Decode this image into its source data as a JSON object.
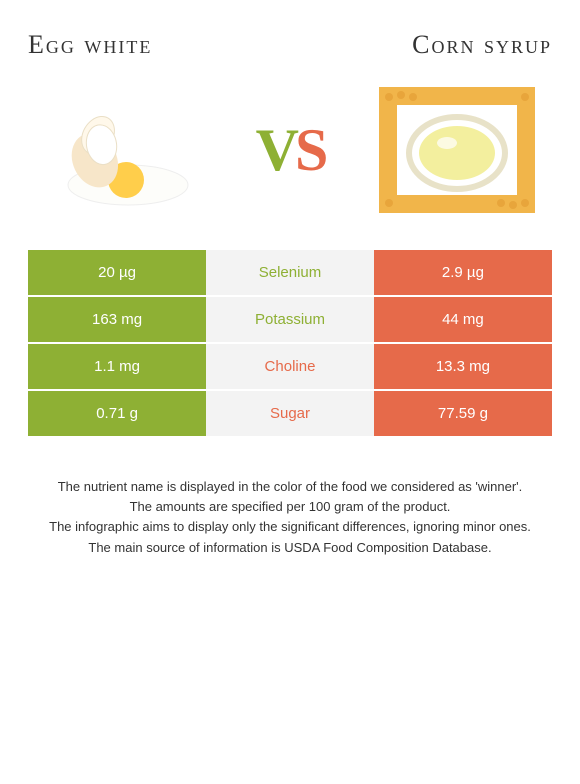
{
  "colors": {
    "green": "#8eb034",
    "orange": "#e66a4a",
    "mid_bg": "#f3f3f3",
    "text": "#333333",
    "page_bg": "#ffffff",
    "title_fontsize": 26,
    "vs_fontsize": 60,
    "cell_fontsize": 15,
    "footer_fontsize": 13
  },
  "left": {
    "title": "Egg white",
    "color_key": "green"
  },
  "right": {
    "title": "Corn syrup",
    "color_key": "orange"
  },
  "vs": {
    "v": "V",
    "s": "S"
  },
  "table": {
    "type": "table",
    "columns": [
      "left_value",
      "nutrient",
      "right_value"
    ],
    "rows": [
      {
        "left": "20 µg",
        "label": "Selenium",
        "right": "2.9 µg",
        "winner": "left"
      },
      {
        "left": "163 mg",
        "label": "Potassium",
        "right": "44 mg",
        "winner": "left"
      },
      {
        "left": "1.1 mg",
        "label": "Choline",
        "right": "13.3 mg",
        "winner": "right"
      },
      {
        "left": "0.71 g",
        "label": "Sugar",
        "right": "77.59 g",
        "winner": "right"
      }
    ]
  },
  "footer": {
    "line1": "The nutrient name is displayed in the color of the food we considered as 'winner'.",
    "line2": "The amounts are specified per 100 gram of the product.",
    "line3": "The infographic aims to display only the significant differences, ignoring minor ones.",
    "line4": "The main source of information is USDA Food Composition Database."
  }
}
